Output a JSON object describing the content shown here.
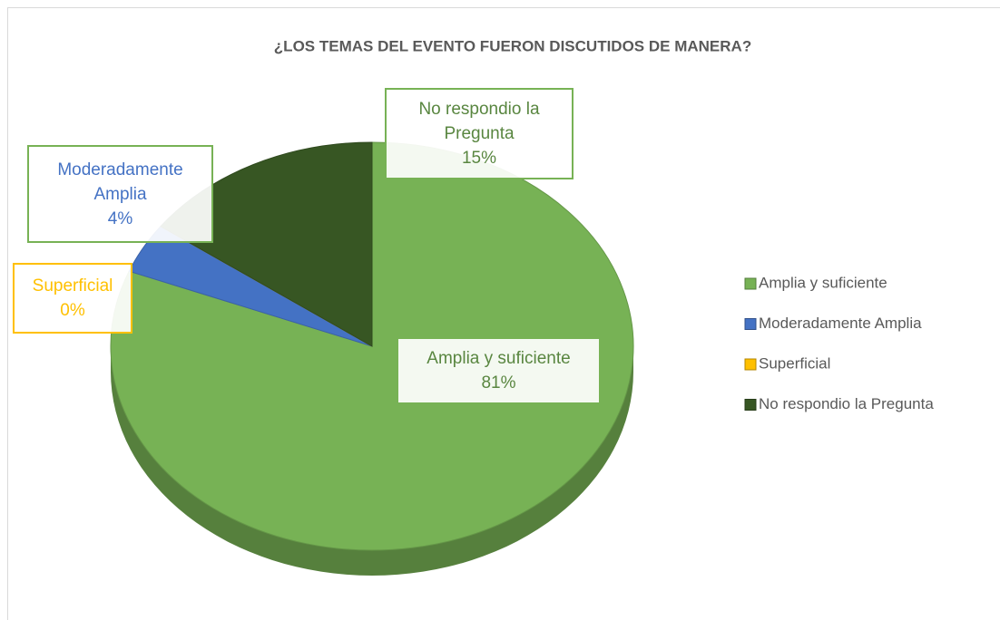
{
  "chart_data": {
    "type": "pie",
    "title": "¿LOS TEMAS DEL EVENTO FUERON DISCUTIDOS DE MANERA?",
    "categories": [
      "Amplia y suficiente",
      "Moderadamente Amplia",
      "Superficial",
      "No respondio la Pregunta"
    ],
    "values": [
      81,
      4,
      0,
      15
    ],
    "value_labels": [
      "81%",
      "4%",
      "0%",
      "15%"
    ],
    "colors": [
      "#77b255",
      "#4472c4",
      "#ffc000",
      "#375623"
    ],
    "legend": "right"
  }
}
